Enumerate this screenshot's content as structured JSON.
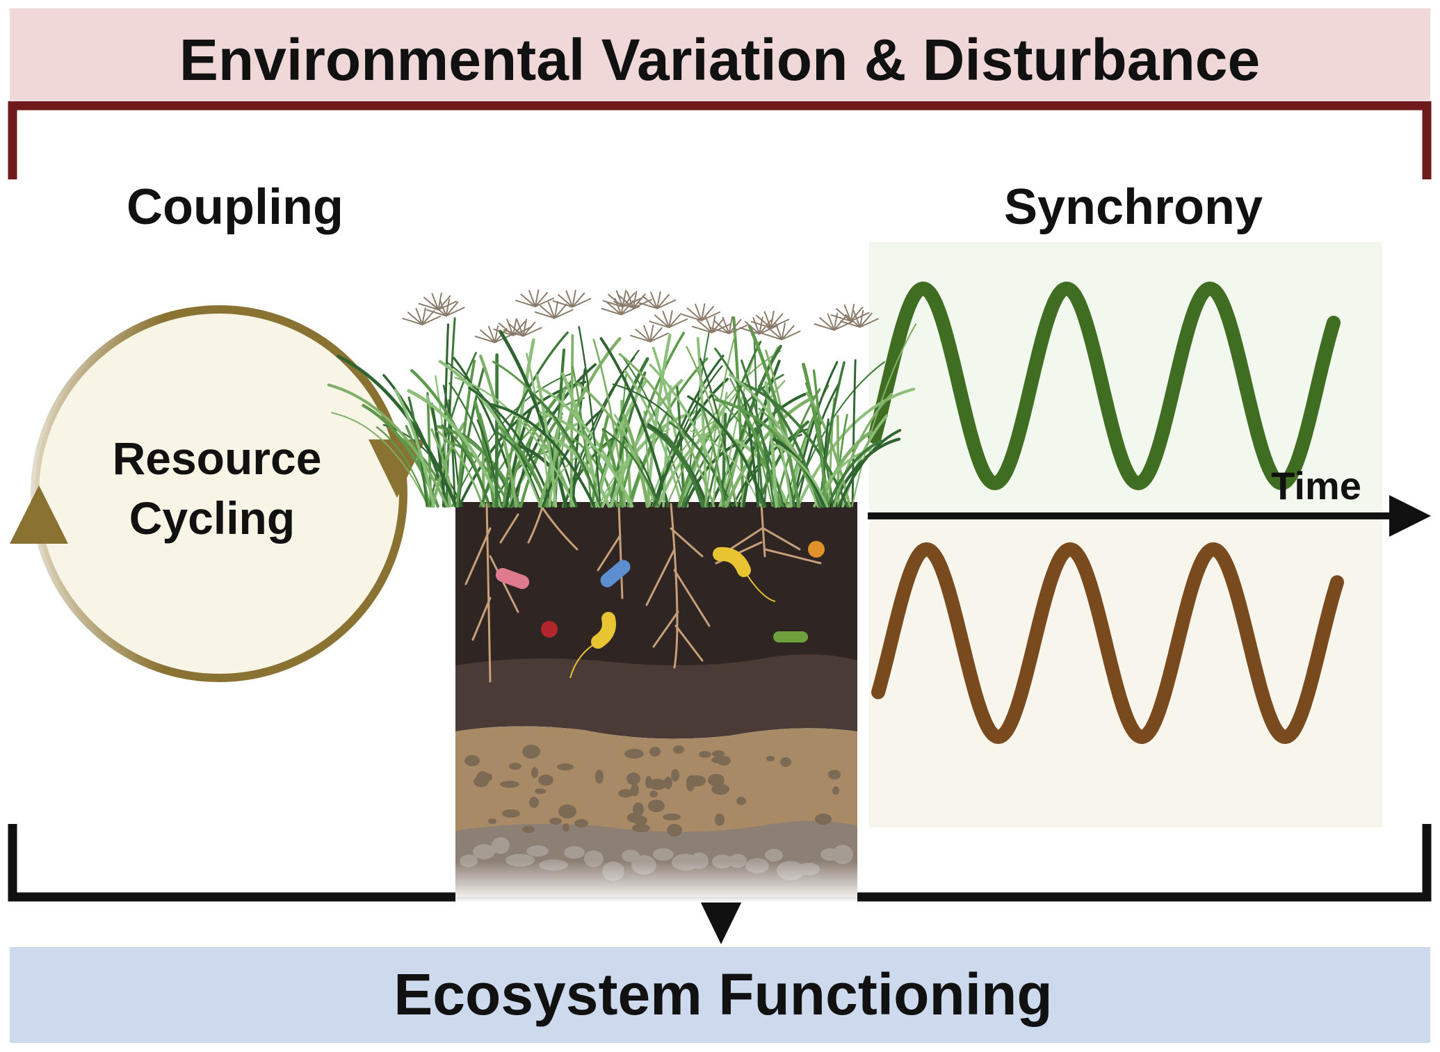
{
  "header": {
    "title": "Environmental Variation & Disturbance"
  },
  "footer": {
    "title": "Ecosystem Functioning"
  },
  "coupling": {
    "label": "Coupling",
    "cycle_line1": "Resource",
    "cycle_line2": "Cycling"
  },
  "synchrony": {
    "label": "Synchrony",
    "axis_label": "Time"
  },
  "colors": {
    "header_bg": "#f0d8d8",
    "bracket_top": "#6e1a1a",
    "footer_bg": "#cddaed",
    "cycle_arrow": "#8a7232",
    "cycle_fill": "#f8f4e6",
    "wave_top": "#3f6e22",
    "wave_bottom": "#7a4a1f",
    "panel_top": "#f3f8ef",
    "panel_bottom": "#f8f5ec"
  },
  "icons": [
    "grass-icon",
    "soil-profile-icon",
    "microbe-icon",
    "root-icon",
    "cycle-arrow-icon"
  ]
}
